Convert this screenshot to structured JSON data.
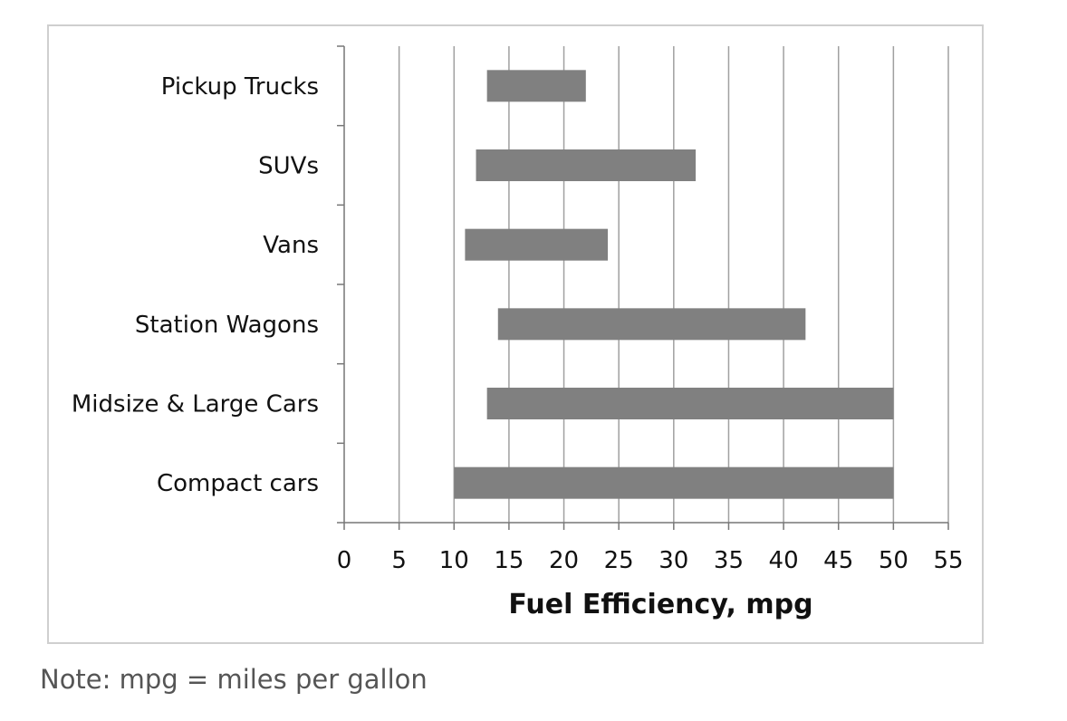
{
  "chart_data": {
    "type": "bar",
    "orientation": "horizontal",
    "subtype": "floating range bars",
    "categories": [
      "Pickup Trucks",
      "SUVs",
      "Vans",
      "Station Wagons",
      "Midsize & Large Cars",
      "Compact cars"
    ],
    "ranges": [
      {
        "category": "Pickup Trucks",
        "min": 13,
        "max": 22
      },
      {
        "category": "SUVs",
        "min": 12,
        "max": 32
      },
      {
        "category": "Vans",
        "min": 11,
        "max": 24
      },
      {
        "category": "Station Wagons",
        "min": 14,
        "max": 42
      },
      {
        "category": "Midsize & Large Cars",
        "min": 13,
        "max": 50
      },
      {
        "category": "Compact cars",
        "min": 10,
        "max": 50
      }
    ],
    "x_ticks": [
      "0",
      "5",
      "10",
      "15",
      "20",
      "25",
      "30",
      "35",
      "40",
      "45",
      "50",
      "55"
    ],
    "xlim": [
      0,
      55
    ],
    "xlabel": "Fuel Efficiency,  mpg",
    "ylabel": "",
    "title": "",
    "grid": "vertical",
    "legend": "none",
    "bar_color": "#808080",
    "grid_color": "#a0a0a0"
  },
  "note": "Note: mpg = miles per gallon"
}
